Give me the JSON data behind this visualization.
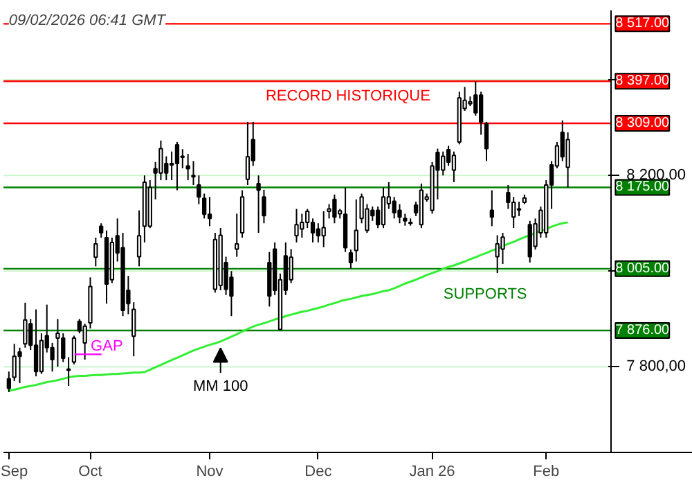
{
  "chart_data": {
    "type": "candlestick",
    "categories": [
      "Sep",
      null,
      null,
      null,
      null,
      null,
      null,
      null,
      null,
      null,
      null,
      null,
      null,
      null,
      null,
      "Oct",
      null,
      null,
      null,
      null,
      null,
      null,
      null,
      null,
      null,
      null,
      null,
      null,
      null,
      null,
      null,
      null,
      null,
      null,
      null,
      null,
      null,
      "Nov",
      null,
      null,
      null,
      null,
      null,
      null,
      null,
      null,
      null,
      null,
      null,
      null,
      null,
      null,
      null,
      null,
      null,
      null,
      null,
      "Dec",
      null,
      null,
      null,
      null,
      null,
      null,
      null,
      null,
      null,
      null,
      null,
      null,
      null,
      null,
      null,
      null,
      null,
      null,
      null,
      null,
      "Jan 26",
      null,
      null,
      null,
      null,
      null,
      null,
      null,
      null,
      null,
      null,
      null,
      null,
      null,
      null,
      null,
      null,
      null,
      null,
      null,
      null,
      "Feb",
      null,
      null,
      null,
      null
    ],
    "ohlc": [
      [
        7775,
        7790,
        7747,
        7755
      ],
      [
        7778,
        7848,
        7770,
        7822
      ],
      [
        7831,
        7840,
        7766,
        7822
      ],
      [
        7848,
        7934,
        7840,
        7898
      ],
      [
        7890,
        7900,
        7835,
        7845
      ],
      [
        7845,
        7920,
        7780,
        7790
      ],
      [
        7790,
        7870,
        7785,
        7855
      ],
      [
        7865,
        7930,
        7830,
        7840
      ],
      [
        7840,
        7850,
        7790,
        7815
      ],
      [
        7860,
        7900,
        7800,
        7870
      ],
      [
        7860,
        7870,
        7810,
        7818
      ],
      [
        7795,
        7820,
        7760,
        7793
      ],
      [
        7810,
        7865,
        7805,
        7860
      ],
      [
        7895,
        7900,
        7870,
        7875
      ],
      [
        7850,
        7890,
        7815,
        7885
      ],
      [
        7892,
        7987,
        7880,
        7968
      ],
      [
        8029,
        8070,
        8010,
        8057
      ],
      [
        8094,
        8100,
        8070,
        8080
      ],
      [
        8070,
        8085,
        7932,
        7973
      ],
      [
        7982,
        8070,
        7975,
        8060
      ],
      [
        8074,
        8110,
        8020,
        8038
      ],
      [
        8049,
        8080,
        7906,
        7918
      ],
      [
        7960,
        7990,
        7910,
        7932
      ],
      [
        7864,
        7935,
        7822,
        7920
      ],
      [
        8030,
        8127,
        8010,
        8074
      ],
      [
        8094,
        8200,
        8060,
        8186
      ],
      [
        8094,
        8190,
        8090,
        8175
      ],
      [
        8214,
        8228,
        8150,
        8205
      ],
      [
        8205,
        8273,
        8190,
        8256
      ],
      [
        8225,
        8240,
        8190,
        8205
      ],
      [
        8225,
        8250,
        8190,
        8222
      ],
      [
        8264,
        8270,
        8169,
        8225
      ],
      [
        8240,
        8255,
        8215,
        8238
      ],
      [
        8220,
        8245,
        8190,
        8214
      ],
      [
        8200,
        8230,
        8180,
        8197
      ],
      [
        8180,
        8200,
        8140,
        8155
      ],
      [
        8152,
        8162,
        8110,
        8119
      ],
      [
        8119,
        8155,
        8094,
        8110
      ],
      [
        7962,
        8080,
        7955,
        8066
      ],
      [
        7970,
        8090,
        7960,
        8075
      ],
      [
        8018,
        8030,
        7950,
        7962
      ],
      [
        7987,
        8000,
        7906,
        7948
      ],
      [
        8046,
        8120,
        8030,
        8057
      ],
      [
        8080,
        8169,
        8070,
        8155
      ],
      [
        8192,
        8312,
        8180,
        8239
      ],
      [
        8275,
        8312,
        8220,
        8231
      ],
      [
        8183,
        8200,
        8080,
        8169
      ],
      [
        8155,
        8170,
        8100,
        8116
      ],
      [
        8018,
        8040,
        7926,
        7948
      ],
      [
        8046,
        8060,
        7950,
        7960
      ],
      [
        7878,
        7995,
        7876,
        7982
      ],
      [
        8032,
        8060,
        7950,
        7960
      ],
      [
        7982,
        8046,
        7975,
        8029
      ],
      [
        8074,
        8130,
        8060,
        8097
      ],
      [
        8088,
        8120,
        8070,
        8102
      ],
      [
        8102,
        8130,
        8090,
        8125
      ],
      [
        8102,
        8110,
        8060,
        8080
      ],
      [
        8088,
        8100,
        8060,
        8074
      ],
      [
        8074,
        8125,
        8050,
        8091
      ],
      [
        8125,
        8140,
        8110,
        8130
      ],
      [
        8150,
        8160,
        8100,
        8113
      ],
      [
        8120,
        8130,
        8110,
        8126
      ],
      [
        8119,
        8175,
        8040,
        8049
      ],
      [
        8038,
        8045,
        8005,
        8018
      ],
      [
        8043,
        8150,
        8020,
        8085
      ],
      [
        8110,
        8162,
        8100,
        8155
      ],
      [
        8085,
        8140,
        8080,
        8130
      ],
      [
        8127,
        8135,
        8105,
        8116
      ],
      [
        8127,
        8135,
        8090,
        8097
      ],
      [
        8097,
        8175,
        8090,
        8155
      ],
      [
        8141,
        8186,
        8130,
        8155
      ],
      [
        8146,
        8155,
        8110,
        8122
      ],
      [
        8127,
        8140,
        8100,
        8113
      ],
      [
        8110,
        8120,
        8095,
        8105
      ],
      [
        8102,
        8110,
        8095,
        8100
      ],
      [
        8138,
        8145,
        8115,
        8122
      ],
      [
        8097,
        8183,
        8090,
        8169
      ],
      [
        8150,
        8162,
        8145,
        8155
      ],
      [
        8127,
        8228,
        8120,
        8220
      ],
      [
        8248,
        8256,
        8150,
        8211
      ],
      [
        8211,
        8250,
        8200,
        8240
      ],
      [
        8254,
        8262,
        8220,
        8228
      ],
      [
        8211,
        8250,
        8186,
        8242
      ],
      [
        8270,
        8375,
        8265,
        8362
      ],
      [
        8340,
        8385,
        8335,
        8357
      ],
      [
        8350,
        8365,
        8345,
        8354
      ],
      [
        8368,
        8397,
        8325,
        8331
      ],
      [
        8368,
        8375,
        8285,
        8312
      ],
      [
        8309,
        8312,
        8230,
        8256
      ],
      [
        8127,
        8169,
        8094,
        8113
      ],
      [
        8030,
        8075,
        7996,
        8057
      ],
      [
        8046,
        8080,
        8015,
        8071
      ],
      [
        8164,
        8180,
        8130,
        8144
      ],
      [
        8113,
        8155,
        8090,
        8144
      ],
      [
        8130,
        8145,
        8115,
        8128
      ],
      [
        8144,
        8160,
        8140,
        8153
      ],
      [
        8097,
        8105,
        8018,
        8030
      ],
      [
        8052,
        8110,
        8045,
        8099
      ],
      [
        8080,
        8135,
        8070,
        8127
      ],
      [
        8080,
        8190,
        8070,
        8180
      ],
      [
        8222,
        8230,
        8130,
        8180
      ],
      [
        8220,
        8270,
        8215,
        8262
      ],
      [
        8290,
        8315,
        8230,
        8239
      ],
      [
        8217,
        8290,
        8175,
        8275
      ]
    ],
    "series": [
      {
        "type": "line",
        "color": "#33ee33",
        "values": [
          7750,
          7752,
          7755,
          7758,
          7760,
          7762,
          7765,
          7768,
          7770,
          7772,
          7775,
          7778,
          7780,
          7781,
          7781,
          7782,
          7783,
          7783,
          7784,
          7785,
          7785,
          7786,
          7787,
          7788,
          7788,
          7789,
          7794,
          7799,
          7804,
          7809,
          7814,
          7819,
          7824,
          7829,
          7834,
          7838,
          7842,
          7846,
          7849,
          7853,
          7858,
          7863,
          7868,
          7874,
          7879,
          7884,
          7888,
          7891,
          7895,
          7899,
          7902,
          7906,
          7909,
          7912,
          7915,
          7917,
          7920,
          7923,
          7926,
          7930,
          7933,
          7937,
          7940,
          7942,
          7945,
          7948,
          7950,
          7952,
          7955,
          7958,
          7960,
          7964,
          7969,
          7974,
          7978,
          7982,
          7987,
          7992,
          7996,
          8000,
          8005,
          8009,
          8012,
          8016,
          8020,
          8025,
          8029,
          8034,
          8038,
          8043,
          8047,
          8052,
          8057,
          8061,
          8066,
          8071,
          8075,
          8080,
          8084,
          8088,
          8093,
          8097,
          8100,
          8102
        ]
      }
    ],
    "ylim": [
      7621,
      8545
    ],
    "yticks": [
      {
        "value": 7800,
        "label": "7 800,00"
      },
      {
        "value": 8000,
        "label": null
      },
      {
        "value": 8200,
        "label": "8 200,00"
      },
      {
        "value": 8400,
        "label": null
      }
    ],
    "grid": "y",
    "ref_lines": [
      {
        "axis": "y",
        "value": 8517,
        "label": "8 517.00",
        "color": "#ff0000"
      },
      {
        "axis": "y",
        "value": 8397,
        "label": "8 397.00",
        "color": "#ff0000"
      },
      {
        "axis": "y",
        "value": 8309,
        "label": "8 309.00",
        "color": "#ff0000"
      },
      {
        "axis": "y",
        "value": 8175,
        "label": "8 175.00",
        "color": "#008000"
      },
      {
        "axis": "y",
        "value": 8005,
        "label": "8 005.00",
        "color": "#008000"
      },
      {
        "axis": "y",
        "value": 7876,
        "label": "7 876.00",
        "color": "#008000"
      }
    ],
    "annotations": [
      "09/02/2026 06:41 GMT",
      "RECORD HISTORIQUE",
      "SUPPORTS",
      "GAP",
      "MM 100"
    ]
  }
}
